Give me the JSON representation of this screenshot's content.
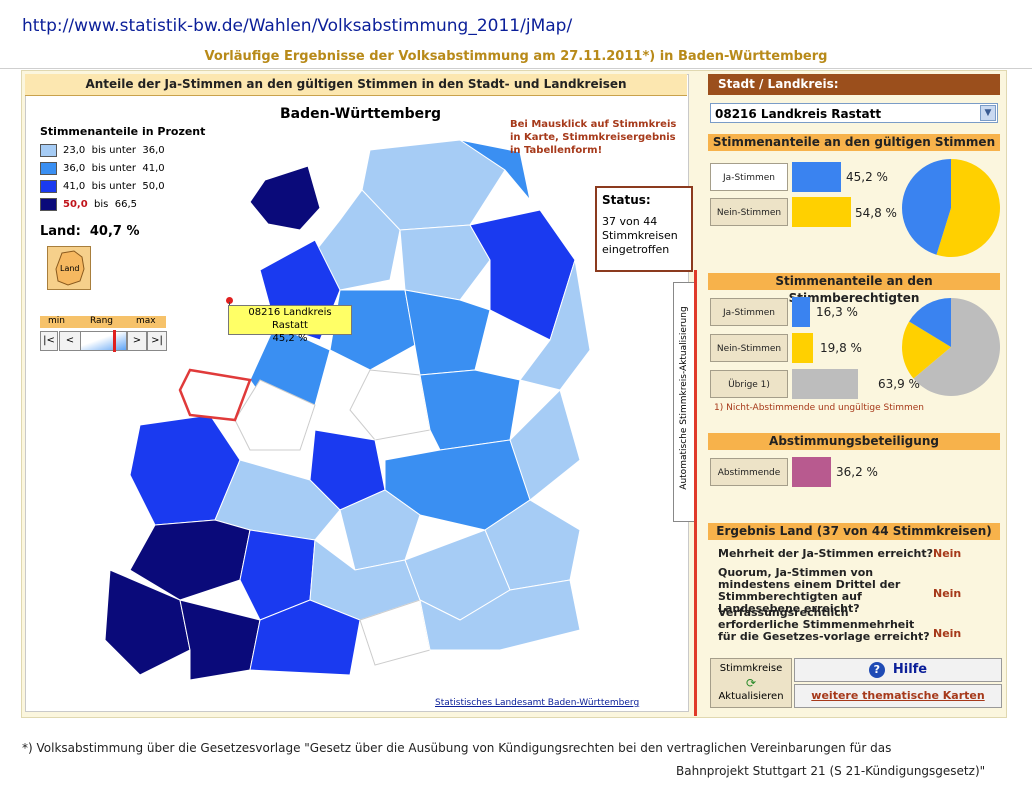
{
  "url": "http://www.statistik-bw.de/Wahlen/Volksabstimmung_2011/jMap/",
  "subtitle": "Vorläufige Ergebnisse der Volksabstimmung am 27.11.2011*) in Baden-Württemberg",
  "left_panel": {
    "header": "Anteile der Ja-Stimmen an den gültigen Stimmen in den Stadt- und Landkreisen",
    "map_title": "Baden-Württemberg",
    "legend_title": "Stimmenanteile in Prozent",
    "legend": [
      {
        "from": "23,0",
        "sep": "bis unter",
        "to": "36,0",
        "color": "#a6ccf5"
      },
      {
        "from": "36,0",
        "sep": "bis unter",
        "to": "41,0",
        "color": "#3a8ff2"
      },
      {
        "from": "41,0",
        "sep": "bis unter",
        "to": "50,0",
        "color": "#1a3af0"
      },
      {
        "from": "50,0",
        "sep": "bis",
        "to": "66,5",
        "color": "#0a0a7a"
      }
    ],
    "land_label": "Land:",
    "land_value": "40,7 %",
    "land_icon_text": "Land",
    "rang": {
      "min": "min",
      "label": "Rang",
      "max": "max"
    },
    "nav": [
      "|<",
      "<",
      ">",
      ">|"
    ],
    "hint": "Bei Mausklick auf Stimmkreis in Karte, Stimmkreisergebnis in Tabellenform!",
    "status": {
      "title": "Status:",
      "text": "37 von 44 Stimmkreisen eingetroffen"
    },
    "tooltip": {
      "name": "08216 Landkreis Rastatt",
      "value": "45,2 %"
    },
    "attribution": "Statistisches Landesamt Baden-Württemberg",
    "auto_label": "Automatische Stimmkreis-Aktualisierung"
  },
  "right_panel": {
    "header": "Stadt / Landkreis:",
    "selected": "08216 Landkreis Rastatt",
    "section1": {
      "title": "Stimmenanteile an den gültigen Stimmen",
      "ja_label": "Ja-Stimmen",
      "ja_pct": "45,2 %",
      "ja": 45.2,
      "nein_label": "Nein-Stimmen",
      "nein_pct": "54,8 %",
      "nein": 54.8
    },
    "section2": {
      "title": "Stimmenanteile an den Stimmberechtigten",
      "ja_label": "Ja-Stimmen",
      "ja_pct": "16,3 %",
      "ja": 16.3,
      "nein_label": "Nein-Stimmen",
      "nein_pct": "19,8 %",
      "nein": 19.8,
      "other_label": "Übrige 1)",
      "other_pct": "63,9 %",
      "other": 63.9,
      "footnote": "1) Nicht-Abstimmende und ungültige Stimmen"
    },
    "section3": {
      "title": "Abstimmungsbeteiligung",
      "label": "Abstimmende",
      "pct": "36,2 %",
      "value": 36.2
    },
    "section4": {
      "title": "Ergebnis Land  (37 von 44 Stimmkreisen)",
      "q1": "Mehrheit der Ja-Stimmen erreicht?",
      "a1": "Nein",
      "q2": "Quorum, Ja-Stimmen von mindestens einem Drittel der Stimmberechtigten auf Landesebene erreicht?",
      "a2": "Nein",
      "q3": "Verfassungsrechtlich erforderliche Stimmenmehrheit für die Gesetzes-vorlage erreicht?",
      "a3": "Nein"
    },
    "refresh_label1": "Stimmkreise",
    "refresh_label2": "Aktualisieren",
    "help": "Hilfe",
    "more_maps": "weitere thematische Karten"
  },
  "footnote_line1": "*) Volksabstimmung über die Gesetzesvorlage \"Gesetz über die Ausübung von Kündigungsrechten bei den vertraglichen Vereinbarungen für das",
  "footnote_line2": "Bahnprojekt Stuttgart 21 (S 21-Kündigungsgesetz)\"",
  "colors": {
    "ja": "#3a83f0",
    "nein": "#ffd000",
    "other": "#bdbdbd",
    "turnout": "#b85a8f"
  }
}
